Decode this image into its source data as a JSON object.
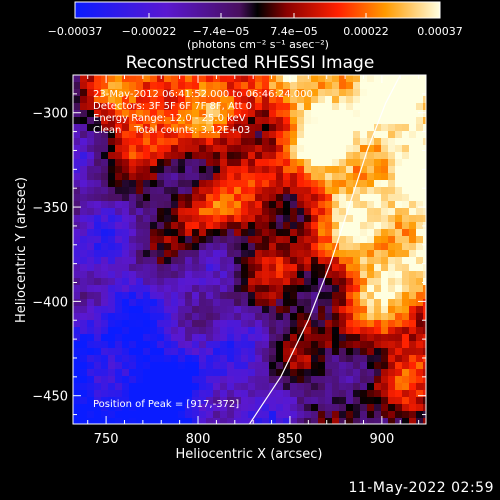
{
  "chart_data": {
    "type": "heatmap",
    "title": "Reconstructed RHESSI Image",
    "xlabel": "Heliocentric X (arcsec)",
    "ylabel": "Heliocentric Y (arcsec)",
    "xlim": [
      732,
      924
    ],
    "ylim": [
      -465,
      -280
    ],
    "x_ticks": [
      {
        "value": 750,
        "label": "750"
      },
      {
        "value": 800,
        "label": "800"
      },
      {
        "value": 850,
        "label": "850"
      },
      {
        "value": 900,
        "label": "900"
      }
    ],
    "y_ticks": [
      {
        "value": -300,
        "label": "−300"
      },
      {
        "value": -350,
        "label": "−350"
      },
      {
        "value": -400,
        "label": "−400"
      },
      {
        "value": -450,
        "label": "−450"
      }
    ],
    "colorbar": {
      "range": [
        -0.00037,
        0.00037
      ],
      "tick_values": [
        -0.00037,
        -0.00022,
        -7.4e-05,
        7.4e-05,
        0.00022,
        0.00037
      ],
      "tick_labels": [
        "−0.00037",
        "−0.00022",
        "−7.4e−05",
        "7.4e−05",
        "0.00022",
        "0.00037"
      ],
      "unit_label": "(photons cm⁻² s⁻¹ asec⁻²)"
    },
    "annotations": {
      "time_range": "23-May-2012 06:41:52.000 to 06:46:24.000",
      "detectors": "Detectors: 3F 5F 6F 7F 8F, Att 0",
      "energy_range": "Energy Range: 12.0 - 25.0 keV",
      "method": "Clean    Total counts: 3.12E+03",
      "peak_position": "Position of Peak = [917,-372]"
    },
    "peak": {
      "x": 917,
      "y": -372
    },
    "limb_points": [
      [
        828,
        -465
      ],
      [
        845,
        -440
      ],
      [
        860,
        -410
      ],
      [
        872,
        -380
      ],
      [
        882,
        -350
      ],
      [
        892,
        -320
      ],
      [
        902,
        -295
      ],
      [
        910,
        -280
      ]
    ],
    "grid": false
  },
  "footer": {
    "timestamp": "11-May-2022 02:59"
  },
  "colors": {
    "background": "#000000",
    "limb": "#ffffff"
  }
}
